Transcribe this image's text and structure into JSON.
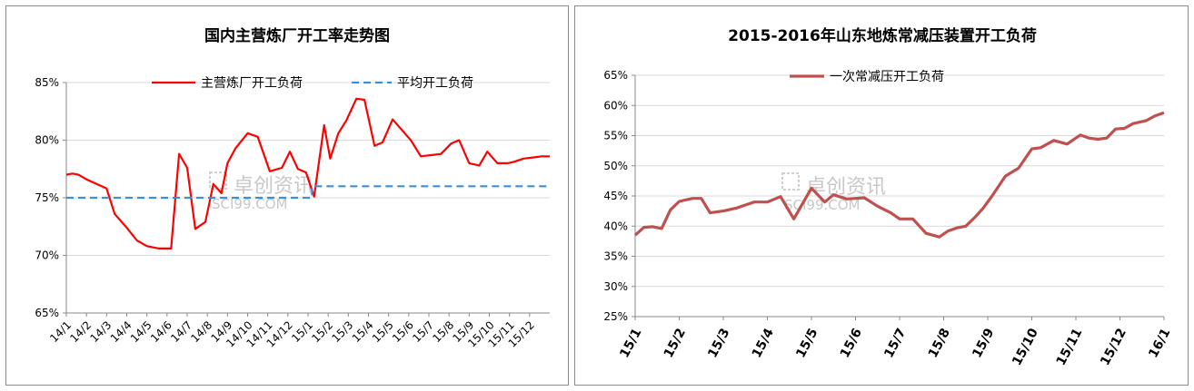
{
  "chart_data": [
    {
      "type": "line",
      "title": "国内主营炼厂开工率走势图",
      "xlabel": "",
      "ylabel": "",
      "ylim": [
        65,
        85
      ],
      "y_ticks": [
        "65%",
        "70%",
        "75%",
        "80%",
        "85%"
      ],
      "x_tick_labels": [
        "14/1",
        "14/2",
        "14/3",
        "14/4",
        "14/5",
        "14/6",
        "14/7",
        "14/8",
        "14/9",
        "14/10",
        "14/11",
        "14/12",
        "15/1",
        "15/2",
        "15/3",
        "15/4",
        "15/5",
        "15/6",
        "15/7",
        "15/8",
        "15/9",
        "15/10",
        "15/11",
        "15/12"
      ],
      "legend_position": "top",
      "grid": true,
      "series": [
        {
          "name": "主营炼厂开工负荷",
          "color": "#ff0000",
          "style": "solid",
          "x": [
            0,
            0.3,
            0.6,
            1,
            1.5,
            2,
            2.4,
            3,
            3.5,
            4,
            4.6,
            5.2,
            5.6,
            6,
            6.4,
            6.9,
            7.3,
            7.7,
            8,
            8.4,
            9,
            9.5,
            10.1,
            10.7,
            11.1,
            11.5,
            11.9,
            12.3,
            12.8,
            13.1,
            13.5,
            13.9,
            14.4,
            14.8,
            15.3,
            15.7,
            16.2,
            16.6,
            17.1,
            17.6,
            18.1,
            18.6,
            19.1,
            19.5,
            20,
            20.5,
            20.9,
            21.4,
            21.9,
            22.2,
            22.7,
            23.2,
            23.6,
            24
          ],
          "values": [
            77.0,
            77.1,
            77.0,
            76.6,
            76.2,
            75.8,
            73.6,
            72.4,
            71.3,
            70.8,
            70.6,
            70.6,
            78.8,
            77.6,
            72.3,
            72.9,
            76.2,
            75.4,
            78.0,
            79.3,
            80.6,
            80.3,
            77.3,
            77.6,
            79.0,
            77.5,
            77.2,
            75.1,
            81.3,
            78.4,
            80.6,
            81.7,
            83.6,
            83.5,
            79.5,
            79.8,
            81.8,
            81.0,
            80.0,
            78.6,
            78.7,
            78.8,
            79.7,
            80.0,
            78.0,
            77.8,
            79.0,
            78.0,
            78.0,
            78.1,
            78.4,
            78.5,
            78.6,
            78.6
          ]
        },
        {
          "name": "平均开工负荷",
          "color": "#3a8fd9",
          "style": "dashed",
          "x": [
            0,
            12.2,
            12.2,
            24
          ],
          "values": [
            75,
            75,
            76,
            76
          ]
        }
      ],
      "watermark": {
        "brand": "卓创资讯",
        "site": "SCI99.COM"
      }
    },
    {
      "type": "line",
      "title": "2015-2016年山东地炼常减压装置开工负荷",
      "xlabel": "",
      "ylabel": "",
      "ylim": [
        25,
        65
      ],
      "y_ticks": [
        "25%",
        "30%",
        "35%",
        "40%",
        "45%",
        "50%",
        "55%",
        "60%",
        "65%"
      ],
      "x_tick_labels": [
        "15/1",
        "15/2",
        "15/3",
        "15/4",
        "15/5",
        "15/6",
        "15/7",
        "15/8",
        "15/9",
        "15/10",
        "15/11",
        "15/12",
        "16/1"
      ],
      "legend_position": "top",
      "grid": true,
      "series": [
        {
          "name": "一次常减压开工负荷",
          "color": "#c0504d",
          "style": "solid",
          "x": [
            0,
            0.2,
            0.4,
            0.6,
            0.8,
            1.0,
            1.3,
            1.5,
            1.7,
            2.0,
            2.3,
            2.5,
            2.7,
            3.0,
            3.3,
            3.6,
            4.0,
            4.3,
            4.5,
            4.8,
            5.0,
            5.2,
            5.5,
            5.8,
            6.0,
            6.3,
            6.6,
            6.9,
            7.1,
            7.3,
            7.5,
            7.7,
            7.9,
            8.1,
            8.4,
            8.7,
            9.0,
            9.2,
            9.5,
            9.8,
            10.1,
            10.3,
            10.5,
            10.7,
            10.9,
            11.1,
            11.3,
            11.6,
            11.8,
            12.0
          ],
          "values": [
            38.5,
            39.8,
            39.9,
            39.6,
            42.7,
            44.1,
            44.6,
            44.6,
            42.2,
            42.5,
            43.0,
            43.5,
            44.0,
            44.0,
            44.9,
            41.2,
            46.3,
            44.0,
            45.2,
            44.5,
            44.6,
            44.7,
            43.3,
            42.2,
            41.2,
            41.2,
            38.8,
            38.2,
            39.2,
            39.7,
            40.0,
            41.4,
            43.0,
            45.0,
            48.3,
            49.6,
            52.8,
            53.0,
            54.2,
            53.6,
            55.1,
            54.6,
            54.4,
            54.6,
            56.1,
            56.2,
            57.0,
            57.5,
            58.3,
            58.8
          ]
        }
      ],
      "watermark": {
        "brand": "卓创资讯",
        "site": "SCI99.COM"
      }
    }
  ]
}
